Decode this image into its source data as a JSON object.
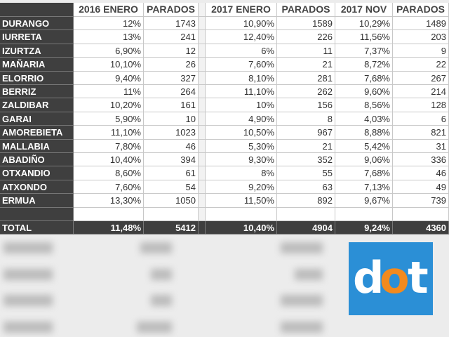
{
  "table": {
    "header": [
      "2016 ENERO",
      "PARADOS",
      "2017 ENERO",
      "PARADOS",
      "2017 NOV",
      "PARADOS"
    ],
    "rows": [
      [
        "DURANGO",
        "12%",
        "1743",
        "10,90%",
        "1589",
        "10,29%",
        "1489"
      ],
      [
        "IURRETA",
        "13%",
        "241",
        "12,40%",
        "226",
        "11,56%",
        "203"
      ],
      [
        "IZURTZA",
        "6,90%",
        "12",
        "6%",
        "11",
        "7,37%",
        "9"
      ],
      [
        "MAÑARIA",
        "10,10%",
        "26",
        "7,60%",
        "21",
        "8,72%",
        "22"
      ],
      [
        "ELORRIO",
        "9,40%",
        "327",
        "8,10%",
        "281",
        "7,68%",
        "267"
      ],
      [
        "BERRIZ",
        "11%",
        "264",
        "11,10%",
        "262",
        "9,60%",
        "214"
      ],
      [
        "ZALDIBAR",
        "10,20%",
        "161",
        "10%",
        "156",
        "8,56%",
        "128"
      ],
      [
        "GARAI",
        "5,90%",
        "10",
        "4,90%",
        "8",
        "4,03%",
        "6"
      ],
      [
        "AMOREBIETA",
        "11,10%",
        "1023",
        "10,50%",
        "967",
        "8,88%",
        "821"
      ],
      [
        "MALLABIA",
        "7,80%",
        "46",
        "5,30%",
        "21",
        "5,42%",
        "31"
      ],
      [
        "ABADIÑO",
        "10,40%",
        "394",
        "9,30%",
        "352",
        "9,06%",
        "336"
      ],
      [
        "OTXANDIO",
        "8,60%",
        "61",
        "8%",
        "55",
        "7,68%",
        "46"
      ],
      [
        "ATXONDO",
        "7,60%",
        "54",
        "9,20%",
        "63",
        "7,13%",
        "49"
      ],
      [
        "ERMUA",
        "13,30%",
        "1050",
        "11,50%",
        "892",
        "9,67%",
        "739"
      ]
    ],
    "total": [
      "TOTAL",
      "11,48%",
      "5412",
      "10,40%",
      "4904",
      "9,24%",
      "4360"
    ]
  },
  "logo": {
    "letters": [
      "d",
      "o",
      "t"
    ]
  }
}
